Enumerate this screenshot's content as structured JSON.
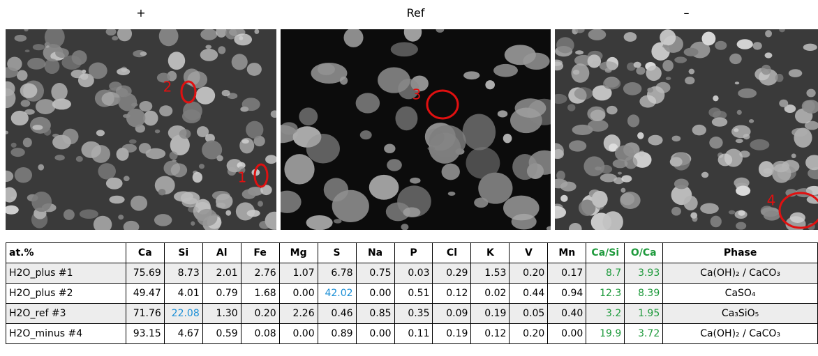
{
  "panels": [
    {
      "title": "+",
      "markers": [
        "1",
        "2"
      ]
    },
    {
      "title": "Ref",
      "markers": [
        "3"
      ]
    },
    {
      "title": "–",
      "markers": [
        "4"
      ]
    }
  ],
  "table": {
    "header": [
      "at.%",
      "Ca",
      "Si",
      "Al",
      "Fe",
      "Mg",
      "S",
      "Na",
      "P",
      "Cl",
      "K",
      "V",
      "Mn",
      "Ca/Si",
      "O/Ca",
      "Phase"
    ],
    "rows": [
      [
        "H2O_plus #1",
        "75.69",
        "8.73",
        "2.01",
        "2.76",
        "1.07",
        "6.78",
        "0.75",
        "0.03",
        "0.29",
        "1.53",
        "0.20",
        "0.17",
        "8.7",
        "3.93",
        "Ca(OH)₂ / CaCO₃"
      ],
      [
        "H2O_plus #2",
        "49.47",
        "4.01",
        "0.79",
        "1.68",
        "0.00",
        "42.02",
        "0.00",
        "0.51",
        "0.12",
        "0.02",
        "0.44",
        "0.94",
        "12.3",
        "8.39",
        "CaSO₄"
      ],
      [
        "H2O_ref #3",
        "71.76",
        "22.08",
        "1.30",
        "0.20",
        "2.26",
        "0.46",
        "0.85",
        "0.35",
        "0.09",
        "0.19",
        "0.05",
        "0.40",
        "3.2",
        "1.95",
        "Ca₃SiO₅"
      ],
      [
        "H2O_minus #4",
        "93.15",
        "4.67",
        "0.59",
        "0.08",
        "0.00",
        "0.89",
        "0.00",
        "0.11",
        "0.19",
        "0.12",
        "0.20",
        "0.00",
        "19.9",
        "3.72",
        "Ca(OH)₂ / CaCO₃"
      ]
    ]
  }
}
